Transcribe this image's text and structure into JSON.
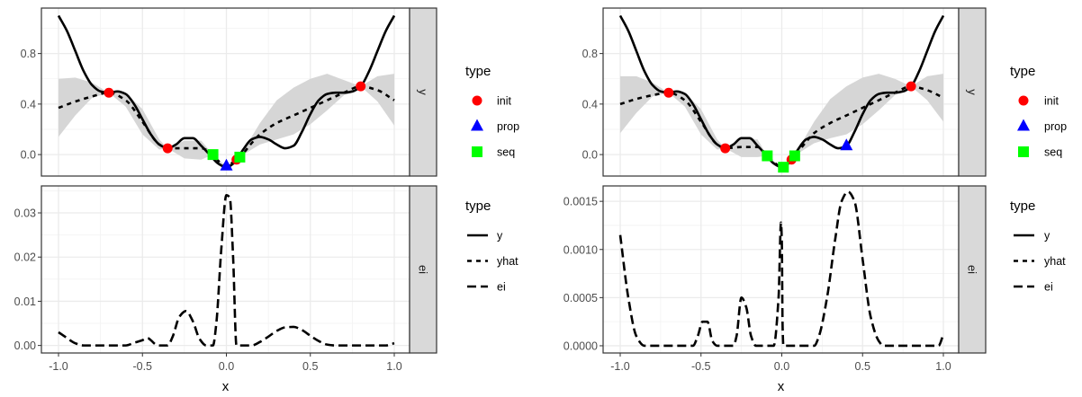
{
  "chart_data": [
    {
      "type": "line",
      "xlabel": "x",
      "xlim": [
        -1,
        1
      ],
      "xticks": [
        -1,
        -0.5,
        0,
        0.5,
        1
      ],
      "xtick_labels": [
        "-1.0",
        "-0.5",
        "0.0",
        "0.5",
        "1.0"
      ],
      "grid": true,
      "legend_placement": "right",
      "panels": {
        "y": {
          "strip": "y",
          "ylim": [
            -0.17,
            1.16
          ],
          "yticks": [
            0,
            0.4,
            0.8
          ],
          "ytick_labels": [
            "0.0",
            "0.4",
            "0.8"
          ],
          "y_curve": {
            "x": [
              -1,
              -0.95,
              -0.9,
              -0.85,
              -0.8,
              -0.75,
              -0.7,
              -0.65,
              -0.6,
              -0.55,
              -0.5,
              -0.45,
              -0.4,
              -0.35,
              -0.3,
              -0.25,
              -0.2,
              -0.15,
              -0.1,
              -0.05,
              0,
              0.05,
              0.1,
              0.15,
              0.2,
              0.25,
              0.3,
              0.35,
              0.4,
              0.45,
              0.5,
              0.55,
              0.6,
              0.65,
              0.7,
              0.75,
              0.8,
              0.85,
              0.9,
              0.95,
              1
            ],
            "y": [
              1.1,
              0.98,
              0.82,
              0.66,
              0.55,
              0.5,
              0.49,
              0.5,
              0.48,
              0.4,
              0.28,
              0.16,
              0.08,
              0.05,
              0.08,
              0.13,
              0.13,
              0.07,
              0.0,
              -0.07,
              -0.1,
              -0.06,
              0.04,
              0.12,
              0.14,
              0.12,
              0.08,
              0.05,
              0.07,
              0.18,
              0.32,
              0.43,
              0.48,
              0.49,
              0.49,
              0.5,
              0.54,
              0.66,
              0.82,
              0.98,
              1.1
            ]
          },
          "yhat": {
            "x": [
              -1,
              -0.9,
              -0.8,
              -0.7,
              -0.6,
              -0.5,
              -0.4,
              -0.35,
              -0.25,
              -0.15,
              -0.08,
              -0.04,
              0,
              0.04,
              0.08,
              0.15,
              0.2,
              0.3,
              0.4,
              0.5,
              0.6,
              0.7,
              0.8,
              0.9,
              1
            ],
            "y": [
              0.37,
              0.42,
              0.46,
              0.49,
              0.43,
              0.26,
              0.08,
              0.05,
              0.05,
              0.05,
              0.0,
              -0.06,
              -0.09,
              -0.06,
              -0.02,
              0.09,
              0.16,
              0.25,
              0.31,
              0.37,
              0.43,
              0.49,
              0.54,
              0.51,
              0.43
            ],
            "lower": [
              0.14,
              0.31,
              0.45,
              0.49,
              0.38,
              0.16,
              0.04,
              0.05,
              -0.03,
              -0.04,
              0.0,
              -0.07,
              -0.09,
              -0.07,
              -0.02,
              0.04,
              0.08,
              0.12,
              0.16,
              0.24,
              0.35,
              0.47,
              0.54,
              0.42,
              0.23
            ],
            "upper": [
              0.6,
              0.61,
              0.57,
              0.49,
              0.49,
              0.36,
              0.12,
              0.05,
              0.11,
              0.11,
              0.0,
              -0.05,
              -0.09,
              -0.05,
              -0.02,
              0.14,
              0.25,
              0.43,
              0.53,
              0.6,
              0.64,
              0.59,
              0.54,
              0.62,
              0.64
            ]
          },
          "points": {
            "init": [
              [
                -0.7,
                0.49
              ],
              [
                -0.35,
                0.05
              ],
              [
                0.06,
                -0.04
              ],
              [
                0.8,
                0.54
              ]
            ],
            "prop": [
              [
                0.0,
                -0.09
              ]
            ],
            "seq": [
              [
                -0.08,
                0.0
              ],
              [
                0.08,
                -0.02
              ]
            ]
          }
        },
        "ei": {
          "strip": "ei",
          "ylim": [
            -0.0017,
            0.0361
          ],
          "yticks": [
            0,
            0.01,
            0.02,
            0.03
          ],
          "ytick_labels": [
            "0.00",
            "0.01",
            "0.02",
            "0.03"
          ],
          "ei_curve": {
            "x": [
              -1,
              -0.95,
              -0.9,
              -0.85,
              -0.6,
              -0.55,
              -0.5,
              -0.47,
              -0.45,
              -0.42,
              -0.4,
              -0.35,
              -0.32,
              -0.28,
              -0.24,
              -0.2,
              -0.16,
              -0.12,
              -0.08,
              -0.06,
              -0.03,
              0,
              0.02,
              0.04,
              0.06,
              0.1,
              0.15,
              0.2,
              0.25,
              0.3,
              0.35,
              0.4,
              0.45,
              0.5,
              0.55,
              0.6,
              0.65,
              0.95,
              1
            ],
            "y": [
              0.003,
              0.0017,
              0.0005,
              0,
              0,
              0.0006,
              0.0012,
              0.0017,
              0.0012,
              0.0002,
              0,
              0,
              0.002,
              0.0065,
              0.0078,
              0.0055,
              0.0015,
              0,
              0,
              0.005,
              0.022,
              0.034,
              0.0335,
              0.02,
              0,
              0,
              0,
              0.0008,
              0.002,
              0.0033,
              0.0041,
              0.0042,
              0.0035,
              0.0022,
              0.001,
              0.0002,
              0,
              0,
              0.0005
            ]
          }
        }
      },
      "legends": [
        {
          "title": "type",
          "items": [
            {
              "label": "init",
              "shape": "circle",
              "color": "#FF0000"
            },
            {
              "label": "prop",
              "shape": "triangle",
              "color": "#0000FF"
            },
            {
              "label": "seq",
              "shape": "square",
              "color": "#00FF00"
            }
          ]
        },
        {
          "title": "type",
          "items": [
            {
              "label": "y",
              "linetype": "solid"
            },
            {
              "label": "yhat",
              "linetype": "dashed"
            },
            {
              "label": "ei",
              "linetype": "longdash"
            }
          ]
        }
      ]
    },
    {
      "type": "line",
      "xlabel": "x",
      "xlim": [
        -1,
        1
      ],
      "xticks": [
        -1,
        -0.5,
        0,
        0.5,
        1
      ],
      "xtick_labels": [
        "-1.0",
        "-0.5",
        "0.0",
        "0.5",
        "1.0"
      ],
      "grid": true,
      "legend_placement": "right",
      "panels": {
        "y": {
          "strip": "y",
          "ylim": [
            -0.17,
            1.16
          ],
          "yticks": [
            0,
            0.4,
            0.8
          ],
          "ytick_labels": [
            "0.0",
            "0.4",
            "0.8"
          ],
          "y_curve": {
            "x": [
              -1,
              -0.95,
              -0.9,
              -0.85,
              -0.8,
              -0.75,
              -0.7,
              -0.65,
              -0.6,
              -0.55,
              -0.5,
              -0.45,
              -0.4,
              -0.35,
              -0.3,
              -0.25,
              -0.2,
              -0.15,
              -0.1,
              -0.05,
              0,
              0.05,
              0.1,
              0.15,
              0.2,
              0.25,
              0.3,
              0.35,
              0.4,
              0.45,
              0.5,
              0.55,
              0.6,
              0.65,
              0.7,
              0.75,
              0.8,
              0.85,
              0.9,
              0.95,
              1
            ],
            "y": [
              1.1,
              0.98,
              0.82,
              0.66,
              0.55,
              0.5,
              0.49,
              0.5,
              0.48,
              0.4,
              0.28,
              0.16,
              0.08,
              0.05,
              0.08,
              0.13,
              0.13,
              0.07,
              0.0,
              -0.07,
              -0.1,
              -0.06,
              0.04,
              0.12,
              0.14,
              0.12,
              0.08,
              0.05,
              0.07,
              0.18,
              0.32,
              0.43,
              0.48,
              0.49,
              0.49,
              0.5,
              0.54,
              0.66,
              0.82,
              0.98,
              1.1
            ]
          },
          "yhat": {
            "x": [
              -1,
              -0.9,
              -0.8,
              -0.7,
              -0.6,
              -0.5,
              -0.4,
              -0.35,
              -0.25,
              -0.15,
              -0.09,
              -0.04,
              0,
              0.04,
              0.08,
              0.15,
              0.2,
              0.3,
              0.4,
              0.5,
              0.6,
              0.7,
              0.8,
              0.9,
              1
            ],
            "y": [
              0.4,
              0.44,
              0.47,
              0.49,
              0.43,
              0.26,
              0.08,
              0.05,
              0.06,
              0.06,
              -0.01,
              -0.07,
              -0.1,
              -0.06,
              -0.01,
              0.1,
              0.17,
              0.25,
              0.31,
              0.37,
              0.43,
              0.49,
              0.54,
              0.51,
              0.45
            ],
            "lower": [
              0.17,
              0.33,
              0.46,
              0.49,
              0.38,
              0.16,
              0.04,
              0.05,
              -0.02,
              -0.02,
              -0.01,
              -0.08,
              -0.1,
              -0.07,
              -0.01,
              0.05,
              0.09,
              0.13,
              0.16,
              0.24,
              0.35,
              0.47,
              0.54,
              0.43,
              0.26
            ],
            "upper": [
              0.62,
              0.62,
              0.57,
              0.49,
              0.49,
              0.36,
              0.12,
              0.05,
              0.12,
              0.12,
              -0.01,
              -0.06,
              -0.1,
              -0.05,
              -0.01,
              0.15,
              0.26,
              0.44,
              0.54,
              0.61,
              0.64,
              0.6,
              0.54,
              0.62,
              0.64
            ]
          },
          "points": {
            "init": [
              [
                -0.7,
                0.49
              ],
              [
                -0.35,
                0.05
              ],
              [
                0.06,
                -0.04
              ],
              [
                0.8,
                0.54
              ]
            ],
            "prop": [
              [
                0.4,
                0.07
              ]
            ],
            "seq": [
              [
                -0.09,
                -0.01
              ],
              [
                0.01,
                -0.1
              ],
              [
                0.08,
                -0.01
              ]
            ]
          }
        },
        "ei": {
          "strip": "ei",
          "ylim": [
            -7.5e-05,
            0.00166
          ],
          "yticks": [
            0,
            0.0005,
            0.001,
            0.0015
          ],
          "ytick_labels": [
            "0.0000",
            "0.0005",
            "0.0010",
            "0.0015"
          ],
          "ei_curve": {
            "x": [
              -1,
              -0.95,
              -0.9,
              -0.85,
              -0.55,
              -0.52,
              -0.49,
              -0.46,
              -0.43,
              -0.4,
              -0.3,
              -0.28,
              -0.25,
              -0.22,
              -0.19,
              -0.16,
              -0.05,
              -0.02,
              -0.005,
              0,
              0.005,
              0.01,
              0.2,
              0.23,
              0.28,
              0.33,
              0.37,
              0.41,
              0.45,
              0.5,
              0.55,
              0.6,
              0.63,
              0.97,
              1
            ],
            "y": [
              0.00115,
              0.0005,
              0.0001,
              0,
              0,
              0.0001,
              0.00025,
              0.00025,
              5e-05,
              0,
              0,
              0.0001,
              0.0005,
              0.0004,
              0.0001,
              0,
              0,
              0.0005,
              0.00128,
              0.0011,
              0.0002,
              0,
              0,
              0.0001,
              0.0005,
              0.0011,
              0.0015,
              0.0016,
              0.0015,
              0.0009,
              0.0003,
              5e-05,
              0,
              0,
              0.00012
            ]
          }
        }
      },
      "legends": [
        {
          "title": "type",
          "items": [
            {
              "label": "init",
              "shape": "circle",
              "color": "#FF0000"
            },
            {
              "label": "prop",
              "shape": "triangle",
              "color": "#0000FF"
            },
            {
              "label": "seq",
              "shape": "square",
              "color": "#00FF00"
            }
          ]
        },
        {
          "title": "type",
          "items": [
            {
              "label": "y",
              "linetype": "solid"
            },
            {
              "label": "yhat",
              "linetype": "dashed"
            },
            {
              "label": "ei",
              "linetype": "longdash"
            }
          ]
        }
      ]
    }
  ]
}
